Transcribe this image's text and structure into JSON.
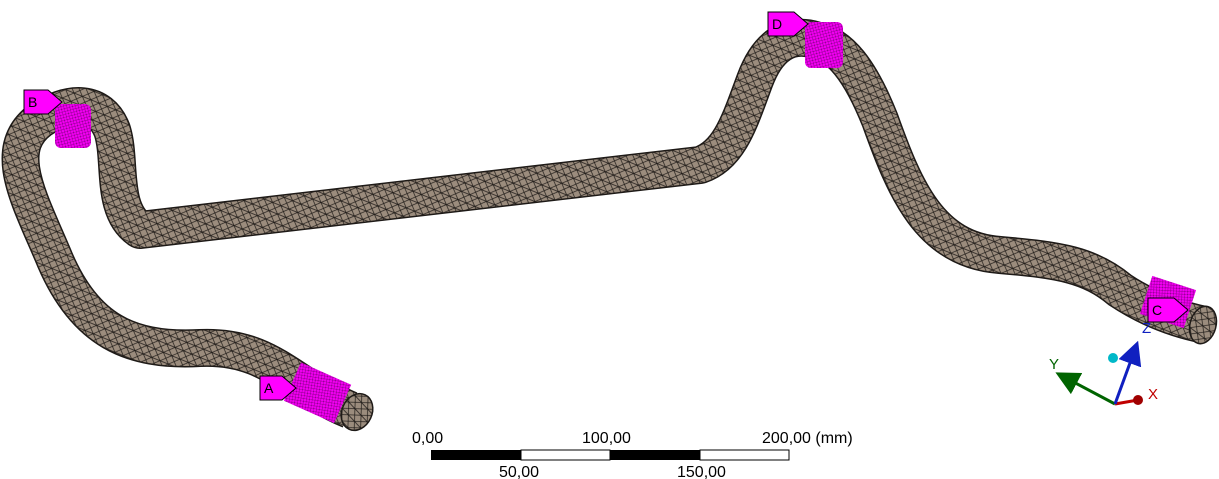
{
  "viewport": {
    "background": "#ffffff",
    "mesh_fill": "#9b8c7d",
    "mesh_line": "#1e1a17",
    "selection_color": "#ff00ff"
  },
  "markers": [
    {
      "id": "A",
      "label": "A"
    },
    {
      "id": "B",
      "label": "B"
    },
    {
      "id": "C",
      "label": "C"
    },
    {
      "id": "D",
      "label": "D"
    }
  ],
  "scale_bar": {
    "top_labels": [
      "0,00",
      "100,00",
      "200,00 (mm)"
    ],
    "bottom_labels": [
      "50,00",
      "150,00"
    ]
  },
  "triad": {
    "x_label": "X",
    "y_label": "Y",
    "z_label": "Z",
    "x_color": "#c00000",
    "y_color": "#006400",
    "z_color": "#1020c0",
    "origin_color": "#00c0c0"
  }
}
